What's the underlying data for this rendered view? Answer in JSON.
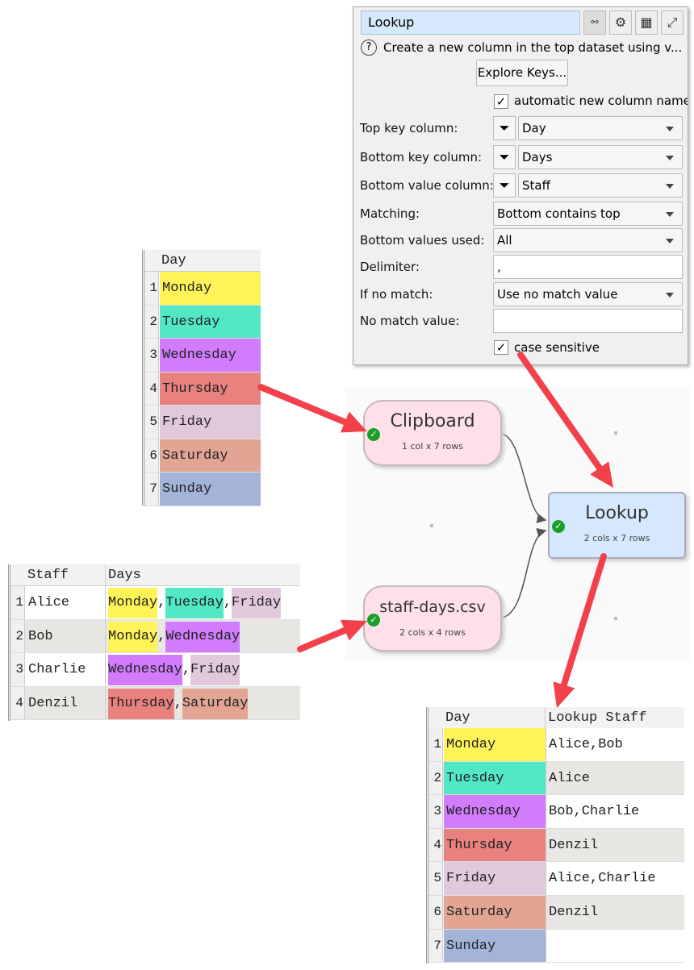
{
  "panel": {
    "title": "Lookup",
    "icons": [
      "node-info-icon",
      "gear-icon",
      "table-icon",
      "expand-icon"
    ],
    "help_text": "Create a new column in the top dataset using v...",
    "explore_keys": "Explore Keys...",
    "auto_name": {
      "checked": true,
      "label": "automatic new column name"
    },
    "top_key": {
      "label": "Top key column:",
      "value": "Day"
    },
    "bottom_key": {
      "label": "Bottom key column:",
      "value": "Days"
    },
    "bottom_value": {
      "label": "Bottom value column:",
      "value": "Staff"
    },
    "matching": {
      "label": "Matching:",
      "value": "Bottom contains top"
    },
    "values_used": {
      "label": "Bottom values used:",
      "value": "All"
    },
    "delimiter": {
      "label": "Delimiter:",
      "value": ","
    },
    "no_match": {
      "label": "If no match:",
      "value": "Use no match value"
    },
    "no_match_value": {
      "label": "No match value:",
      "value": ""
    },
    "case_sensitive": {
      "checked": true,
      "label": "case sensitive"
    }
  },
  "day_colors": {
    "Monday": "#fff35a",
    "Tuesday": "#52e8c6",
    "Wednesday": "#d07cfc",
    "Thursday": "#e9827e",
    "Friday": "#e2c8dd",
    "Saturday": "#e2a594",
    "Sunday": "#a3b4d8"
  },
  "days_table": {
    "header": "Day",
    "rows": [
      "Monday",
      "Tuesday",
      "Wednesday",
      "Thursday",
      "Friday",
      "Saturday",
      "Sunday"
    ]
  },
  "staff_table": {
    "headers": [
      "Staff",
      "Days"
    ],
    "rows": [
      [
        "Alice",
        [
          "Monday",
          "Tuesday",
          "Friday"
        ]
      ],
      [
        "Bob",
        [
          "Monday",
          "Wednesday"
        ]
      ],
      [
        "Charlie",
        [
          "Wednesday",
          "Friday"
        ]
      ],
      [
        "Denzil",
        [
          "Thursday",
          "Saturday"
        ]
      ]
    ]
  },
  "nodes": {
    "clipboard": {
      "title": "Clipboard",
      "info": "1 col x 7 rows"
    },
    "csv": {
      "title": "staff-days.csv",
      "info": "2 cols x 4 rows"
    },
    "lookup": {
      "title": "Lookup",
      "info": "2 cols x 7 rows"
    }
  },
  "result_table": {
    "headers": [
      "Day",
      "Lookup Staff"
    ],
    "rows": [
      [
        "Monday",
        "Alice,Bob"
      ],
      [
        "Tuesday",
        "Alice"
      ],
      [
        "Wednesday",
        "Bob,Charlie"
      ],
      [
        "Thursday",
        "Denzil"
      ],
      [
        "Friday",
        "Alice,Charlie"
      ],
      [
        "Saturday",
        "Denzil"
      ],
      [
        "Sunday",
        ""
      ]
    ]
  },
  "arrow_color": "#f2414a"
}
